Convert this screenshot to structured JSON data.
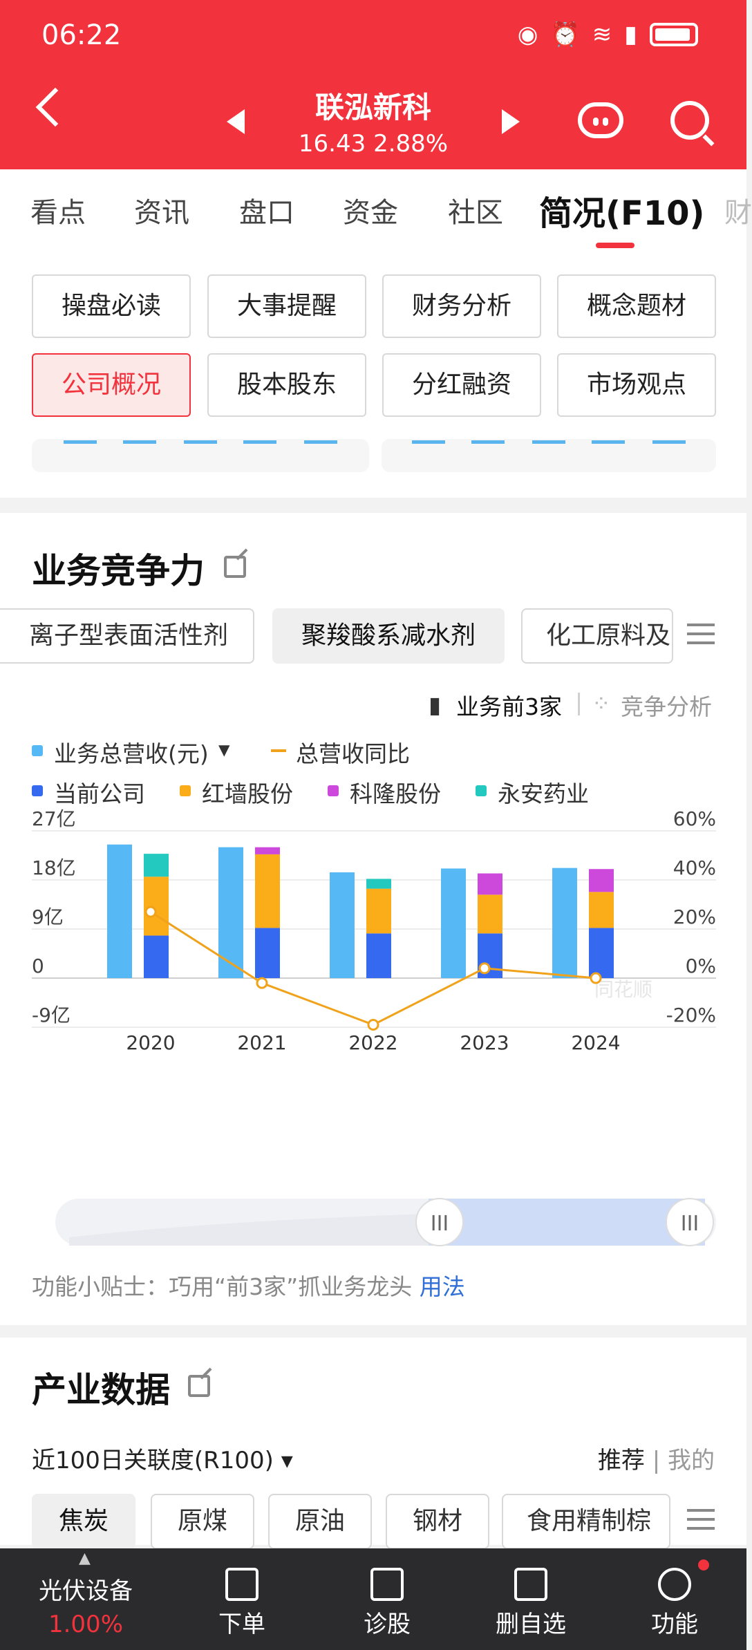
{
  "status": {
    "time": "06:22"
  },
  "header": {
    "stock_name": "联泓新科",
    "price_line": "16.43 2.88%"
  },
  "tabs": [
    "看点",
    "资讯",
    "盘口",
    "资金",
    "社区",
    "简况(F10)",
    "财"
  ],
  "grid_buttons": [
    "操盘必读",
    "大事提醒",
    "财务分析",
    "概念题材",
    "公司概况",
    "股本股东",
    "分红融资",
    "市场观点"
  ],
  "business": {
    "title": "业务竞争力",
    "pills": [
      "离子型表面活性剂",
      "聚羧酸系减水剂",
      "化工原料及"
    ],
    "top3_label": "业务前3家",
    "compete_label": "竞争分析",
    "tip": "功能小贴士：巧用“前3家”抓业务龙头",
    "tip_link": "用法"
  },
  "chart_data": {
    "type": "bar",
    "categories": [
      "2020",
      "2021",
      "2022",
      "2023",
      "2024"
    ],
    "legend": [
      "业务总营收(元)",
      "总营收同比",
      "当前公司",
      "红墙股份",
      "科隆股份",
      "永安药业"
    ],
    "y_left_ticks": [
      "27亿",
      "18亿",
      "9亿",
      "0",
      "-9亿"
    ],
    "y_right_ticks": [
      "60%",
      "40%",
      "20%",
      "0%",
      "-20%"
    ],
    "ylim_left": [
      -9,
      27
    ],
    "ylim_right": [
      -20,
      60
    ],
    "series": [
      {
        "name": "业务总营收(元)",
        "values": [
          24.5,
          24.0,
          19.4,
          20.1,
          20.2
        ],
        "unit": "亿",
        "color": "#56b9f5"
      },
      {
        "name": "当前公司",
        "values": [
          7.8,
          9.2,
          8.2,
          8.2,
          9.2
        ],
        "unit": "亿",
        "color": "#356af0"
      },
      {
        "name": "红墙股份",
        "values": [
          10.8,
          13.5,
          8.2,
          7.1,
          6.6
        ],
        "unit": "亿",
        "color": "#fbac19"
      },
      {
        "name": "科隆股份",
        "values": [
          0,
          1.3,
          0,
          3.9,
          4.2
        ],
        "unit": "亿",
        "color": "#cc49dc"
      },
      {
        "name": "永安药业",
        "values": [
          4.2,
          0,
          1.8,
          0,
          0
        ],
        "unit": "亿",
        "color": "#23c8bf"
      }
    ],
    "line": {
      "name": "总营收同比",
      "values": [
        27,
        -2,
        -19,
        4,
        0
      ],
      "unit": "%",
      "color": "#f0a21a"
    },
    "x_axis_ticks": [
      "2020",
      "2021",
      "2022",
      "2023",
      "2024"
    ]
  },
  "industry": {
    "title": "产业数据",
    "r100_label": "近100日关联度(R100)",
    "recommend": "推荐",
    "mine": "我的",
    "chips": [
      "焦炭",
      "原煤",
      "原油",
      "钢材",
      "食用精制棕"
    ]
  },
  "bottom_bar": {
    "sector_name": "光伏设备",
    "sector_change": "1.00%",
    "items": [
      "下单",
      "诊股",
      "删自选",
      "功能"
    ]
  }
}
